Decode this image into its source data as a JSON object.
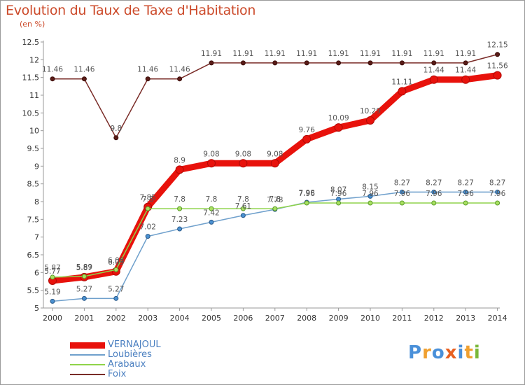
{
  "title": "Evolution du Taux de Taxe d'Habitation",
  "subtitle": "(en %)",
  "brand": {
    "text": "Proxiti",
    "letter_colors": [
      "#4a90d9",
      "#f0a030",
      "#4a90d9",
      "#e86020",
      "#4a90d9",
      "#f0a030",
      "#7ab83a"
    ]
  },
  "chart_data": {
    "type": "line",
    "title": "Evolution du Taux de Taxe d'Habitation",
    "ylabel": "(en %)",
    "xlabel": "",
    "x": [
      "2000",
      "2001",
      "2002",
      "2003",
      "2004",
      "2005",
      "2006",
      "2007",
      "2008",
      "2009",
      "2010",
      "2011",
      "2012",
      "2013",
      "2014"
    ],
    "ylim": [
      5,
      12.5
    ],
    "yticks": [
      "5",
      "5.5",
      "6",
      "6.5",
      "7",
      "7.5",
      "8",
      "8.5",
      "9",
      "9.5",
      "10",
      "10.5",
      "11",
      "11.5",
      "12",
      "12.5"
    ],
    "grid": false,
    "legend_position": "bottom-left",
    "series": [
      {
        "name": "VERNAJOUL",
        "color": "#e8120c",
        "values": [
          5.77,
          5.87,
          6.03,
          7.85,
          8.9,
          9.08,
          9.08,
          9.08,
          9.76,
          10.09,
          10.29,
          11.11,
          11.44,
          11.44,
          11.56
        ],
        "labels": [
          "5.77",
          "5.87",
          "6.03",
          "7.85",
          "8.9",
          "9.08",
          "9.08",
          "9.08",
          "9.76",
          "10.09",
          "10.29",
          "11.11",
          "11.44",
          "11.44",
          "11.56"
        ]
      },
      {
        "name": "Loubières",
        "color": "#6fa0cc",
        "values": [
          5.19,
          5.27,
          5.27,
          7.02,
          7.23,
          7.42,
          7.61,
          7.78,
          7.98,
          8.07,
          8.15,
          8.27,
          8.27,
          8.27,
          8.27
        ],
        "labels": [
          "5.19",
          "5.27",
          "5.27",
          "7.02",
          "7.23",
          "7.42",
          "7.61",
          "7.78",
          "7.98",
          "8.07",
          "8.15",
          "8.27",
          "8.27",
          "8.27",
          "8.27"
        ]
      },
      {
        "name": "Arabaux",
        "color": "#8fd44a",
        "values": [
          5.87,
          5.89,
          6.08,
          7.8,
          7.8,
          7.8,
          7.8,
          7.8,
          7.96,
          7.96,
          7.96,
          7.96,
          7.96,
          7.96,
          7.96
        ],
        "labels": [
          "5.87",
          "5.89",
          "6.08",
          "7.8",
          "7.8",
          "7.8",
          "7.8",
          "7.8",
          "7.96",
          "7.96",
          "7.96",
          "7.96",
          "7.96",
          "7.96",
          "7.96"
        ]
      },
      {
        "name": "Foix",
        "color": "#7a2c28",
        "values": [
          11.46,
          11.46,
          9.8,
          11.46,
          11.46,
          11.91,
          11.91,
          11.91,
          11.91,
          11.91,
          11.91,
          11.91,
          11.91,
          11.91,
          12.15
        ],
        "labels": [
          "11.46",
          "11.46",
          "9.8",
          "11.46",
          "11.46",
          "11.91",
          "11.91",
          "11.91",
          "11.91",
          "11.91",
          "11.91",
          "11.91",
          "11.91",
          "11.91",
          "12.15"
        ]
      }
    ]
  }
}
